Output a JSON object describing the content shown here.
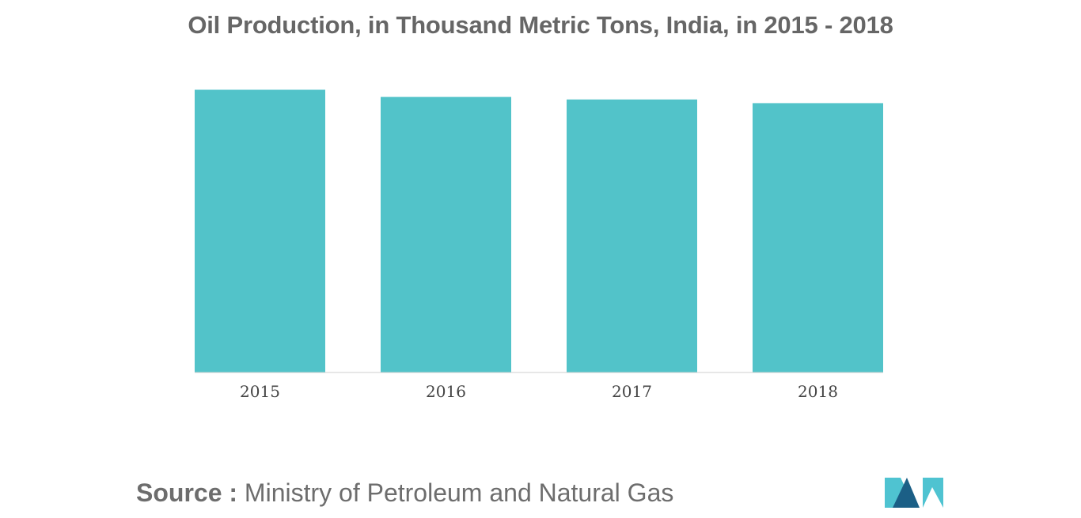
{
  "title": "Oil Production, in Thousand Metric Tons, India, in 2015 - 2018",
  "source": {
    "label": "Source :",
    "text": "Ministry of Petroleum and Natural Gas"
  },
  "colors": {
    "bar": "#52c3c9",
    "axis": "#cfcfcf",
    "logo_dark": "#1b5f86",
    "logo_light": "#4fc3d1"
  },
  "logo": {
    "icon": "mordor-intelligence-logo-icon"
  },
  "chart_data": {
    "type": "bar",
    "title": "Oil Production, in Thousand Metric Tons, India, in 2015 - 2018",
    "categories": [
      "2015",
      "2016",
      "2017",
      "2018"
    ],
    "values": [
      36950,
      36010,
      35680,
      35200
    ],
    "xlabel": "",
    "ylabel": "",
    "ylim": [
      0,
      37000
    ],
    "grid": false,
    "legend": "none"
  }
}
